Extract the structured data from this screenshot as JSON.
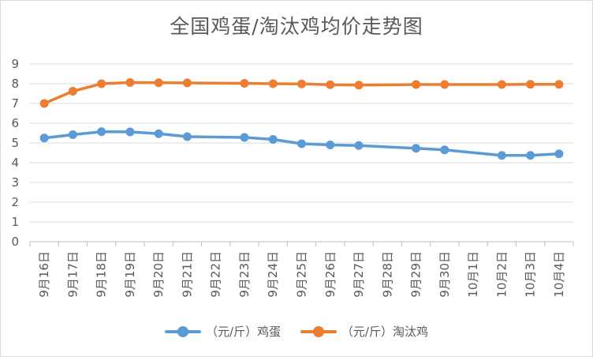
{
  "chart_data": {
    "type": "line",
    "title": "全国鸡蛋/淘汰鸡均价走势图",
    "categories": [
      "9月16日",
      "9月17日",
      "9月18日",
      "9月19日",
      "9月20日",
      "9月21日",
      "9月22日",
      "9月23日",
      "9月24日",
      "9月25日",
      "9月26日",
      "9月27日",
      "9月28日",
      "9月29日",
      "9月30日",
      "10月1日",
      "10月2日",
      "10月3日",
      "10月4日"
    ],
    "series": [
      {
        "name": "（元/斤）鸡蛋",
        "color": "#5B9BD5",
        "values": [
          5.25,
          5.42,
          5.57,
          5.56,
          5.47,
          5.32,
          null,
          5.28,
          5.18,
          4.96,
          4.9,
          4.87,
          null,
          4.73,
          4.65,
          null,
          4.37,
          4.37,
          4.45
        ]
      },
      {
        "name": "（元/斤）淘汰鸡",
        "color": "#ED7D31",
        "values": [
          7.0,
          7.62,
          8.0,
          8.06,
          8.05,
          8.04,
          null,
          8.02,
          8.0,
          7.99,
          7.95,
          7.93,
          null,
          7.96,
          7.96,
          null,
          7.96,
          7.97,
          7.97
        ]
      }
    ],
    "ylim": [
      0,
      9
    ],
    "yticks": [
      0,
      1,
      2,
      3,
      4,
      5,
      6,
      7,
      8,
      9
    ],
    "grid": true,
    "legend_position": "bottom"
  }
}
